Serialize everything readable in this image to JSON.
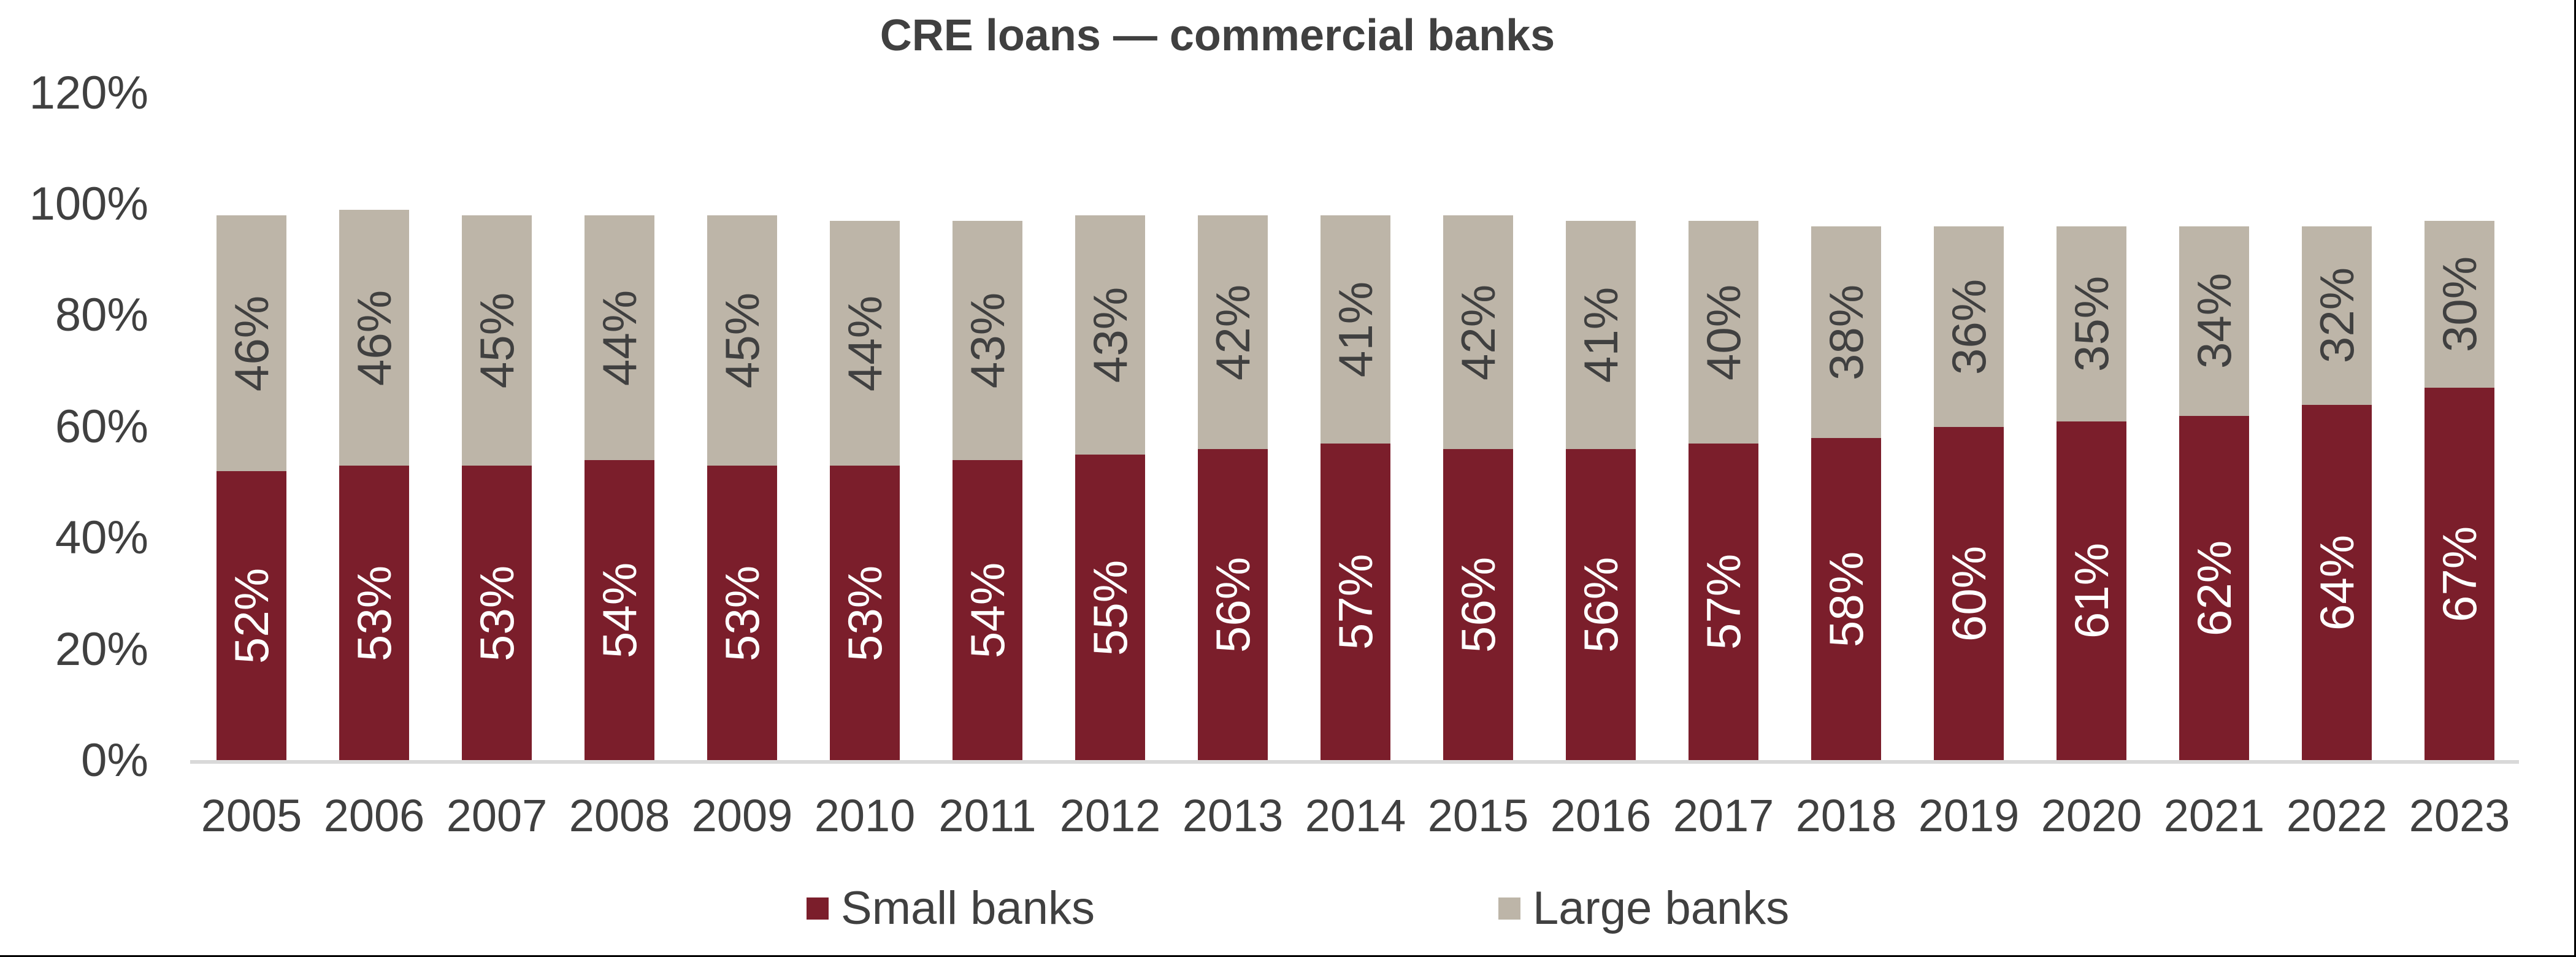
{
  "chart_data": {
    "type": "bar",
    "stacked": true,
    "title": "CRE loans — commercial banks",
    "xlabel": "",
    "ylabel": "",
    "ylim": [
      0,
      120
    ],
    "y_ticks": [
      "0%",
      "20%",
      "40%",
      "60%",
      "80%",
      "100%",
      "120%"
    ],
    "y_tick_values": [
      0,
      20,
      40,
      60,
      80,
      100,
      120
    ],
    "grid": false,
    "legend_position": "bottom",
    "categories": [
      "2005",
      "2006",
      "2007",
      "2008",
      "2009",
      "2010",
      "2011",
      "2012",
      "2013",
      "2014",
      "2015",
      "2016",
      "2017",
      "2018",
      "2019",
      "2020",
      "2021",
      "2022",
      "2023"
    ],
    "series": [
      {
        "name": "Small banks",
        "color": "#7b1e2b",
        "label_color": "#ffffff",
        "values": [
          52,
          53,
          53,
          54,
          53,
          53,
          54,
          55,
          56,
          57,
          56,
          56,
          57,
          58,
          60,
          61,
          62,
          64,
          67
        ]
      },
      {
        "name": "Large banks",
        "color": "#bdb5a8",
        "label_color": "#404040",
        "values": [
          46,
          46,
          45,
          44,
          45,
          44,
          43,
          43,
          42,
          41,
          42,
          41,
          40,
          38,
          36,
          35,
          34,
          32,
          30
        ]
      }
    ],
    "value_label_format": "{v}%",
    "value_label_rotation": -90
  },
  "legend": {
    "items": [
      {
        "label": "Small banks",
        "color": "#7b1e2b"
      },
      {
        "label": "Large banks",
        "color": "#bdb5a8"
      }
    ]
  },
  "colors": {
    "text": "#404040",
    "axis": "#d9d9d9",
    "small_banks": "#7b1e2b",
    "large_banks": "#bdb5a8"
  }
}
